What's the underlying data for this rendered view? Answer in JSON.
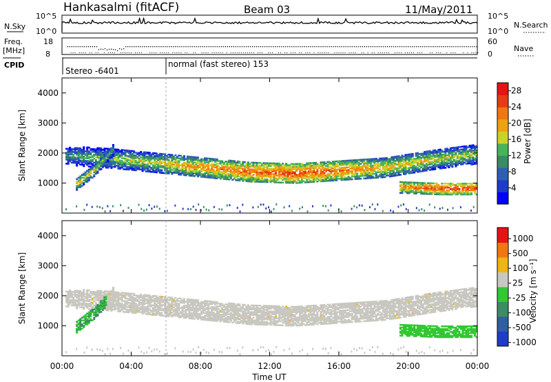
{
  "header": {
    "station": "Hankasalmi (fitACF)",
    "beam": "Beam 03",
    "date": "11/May/2011"
  },
  "top_panels": {
    "nsky_label": "N.Sky",
    "nsky_ticks": [
      "10^5",
      "10^0"
    ],
    "nsearch_label": "N.Search",
    "nsearch_ticks": [
      "10^5",
      "10^0"
    ],
    "freq_label": "Freq.",
    "freq_unit": "[MHz]",
    "freq_ticks": [
      "18",
      "8"
    ],
    "nave_label": "Nave",
    "nave_ticks": [
      "60",
      "0"
    ],
    "cpid_label": "CPID",
    "cpid_segments": [
      {
        "label": "Stereo -6401",
        "start_hour": 0
      },
      {
        "label": "normal (fast stereo) 153",
        "start_hour": 6
      }
    ]
  },
  "chart_data": [
    {
      "type": "heatmap",
      "quantity": "Power",
      "xlabel": "",
      "ylabel": "Slant Range [km]",
      "x_range_hours": [
        0,
        24
      ],
      "ylim": [
        0,
        4500
      ],
      "yticks": [
        "1000",
        "2000",
        "3000",
        "4000"
      ],
      "colorbar": {
        "label": "Power [dB]",
        "ticks": [
          "4",
          "8",
          "12",
          "16",
          "20",
          "24",
          "28"
        ],
        "colors": [
          "#0000ff",
          "#1e3cc8",
          "#2f5fb4",
          "#3a8a64",
          "#46b45a",
          "#c8d22a",
          "#f0a014",
          "#f07814",
          "#e63c14",
          "#e61414"
        ]
      },
      "echo_bands": [
        {
          "name": "",
          "from_hour": 0.2,
          "to_hour": 24,
          "center_km": [
            1950,
            1850,
            1700,
            1550,
            1400,
            1350,
            1450,
            1550,
            1800,
            2000
          ],
          "power_db": [
            14,
            18,
            20,
            24,
            26,
            28,
            26,
            22,
            20,
            18
          ]
        },
        {
          "name": "",
          "from_hour": 0.8,
          "to_hour": 3,
          "center_km": [
            1000,
            1500,
            2200
          ],
          "power_db": [
            22,
            20,
            14
          ]
        },
        {
          "name": "",
          "from_hour": 19.5,
          "to_hour": 24,
          "center_km": [
            900,
            850,
            850
          ],
          "power_db": [
            24,
            28,
            28
          ]
        }
      ]
    },
    {
      "type": "heatmap",
      "quantity": "Velocity",
      "xlabel": "Time UT",
      "ylabel": "Slant Range [km]",
      "x_range_hours": [
        0,
        24
      ],
      "ylim": [
        0,
        4500
      ],
      "yticks": [
        "1000",
        "2000",
        "3000",
        "4000"
      ],
      "xticks": [
        "00:00",
        "04:00",
        "08:00",
        "12:00",
        "16:00",
        "20:00",
        "00:00"
      ],
      "colorbar": {
        "label": "Velocity [m s⁻¹]",
        "ticks": [
          "1000",
          "500",
          "100",
          "25",
          "-25",
          "-100",
          "-500",
          "-1000"
        ],
        "colors": [
          "#1e3cc8",
          "#2f5fa0",
          "#3c8c64",
          "#32c832",
          "#c8c8c0",
          "#f0b414",
          "#f07814",
          "#e61414"
        ]
      }
    }
  ]
}
